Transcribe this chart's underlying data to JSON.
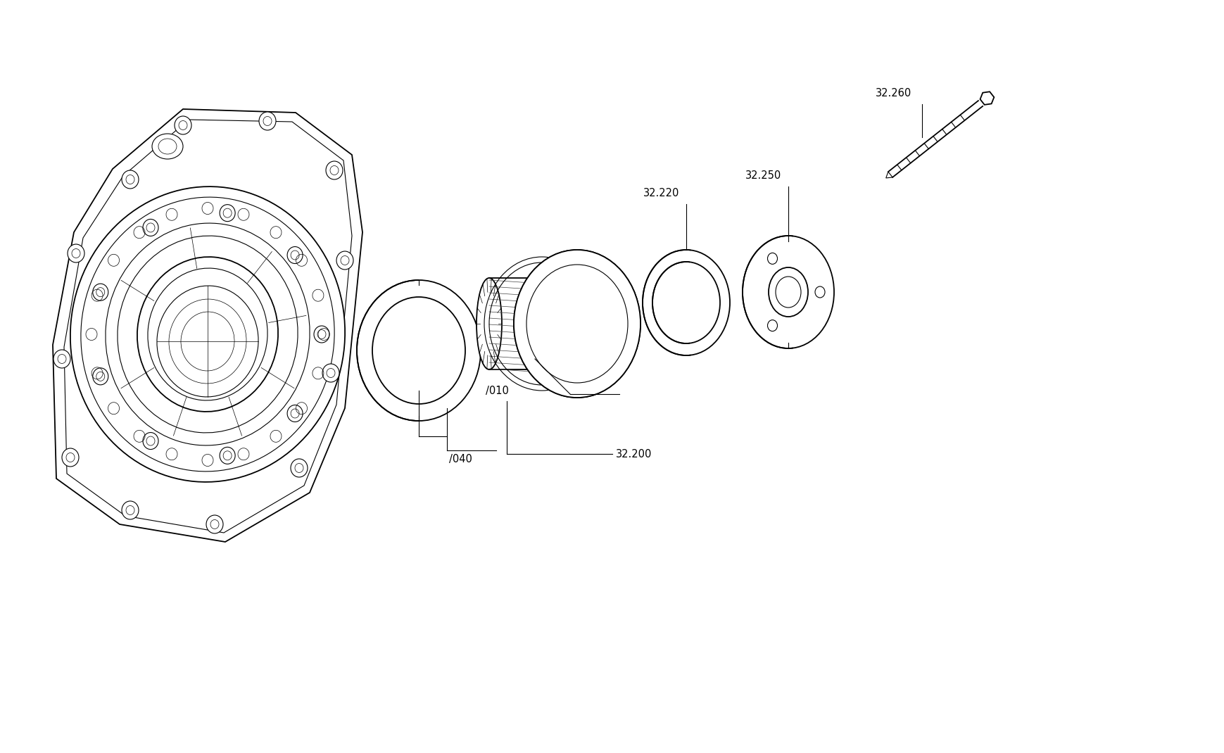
{
  "bg_color": "#ffffff",
  "line_color": "#000000",
  "fig_width": 17.4,
  "fig_height": 10.7,
  "dpi": 100,
  "parts": {
    "housing_label": "/040",
    "ring_label": "32.200",
    "hub_label": "/010",
    "oring_label": "32.220",
    "plate_label": "32.250",
    "bolt_label": "32.260"
  },
  "label_font_size": 10.5
}
